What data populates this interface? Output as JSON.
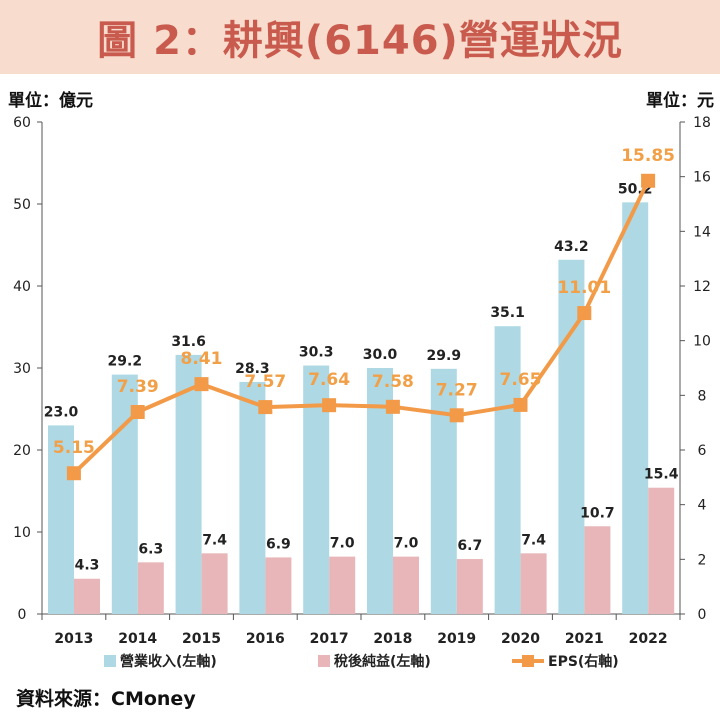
{
  "title": "圖 2：耕興(6146)營運狀況",
  "unit_left": "單位：億元",
  "unit_right": "單位：元",
  "source": "資料來源：CMoney",
  "colors": {
    "revenue": "#add8e4",
    "net_income": "#e8b6b8",
    "eps": "#f29a48",
    "title_bg": "#f8dccd",
    "title_text": "#c85b4d"
  },
  "chart_data": {
    "type": "bar",
    "categories": [
      "2013",
      "2014",
      "2015",
      "2016",
      "2017",
      "2018",
      "2019",
      "2020",
      "2021",
      "2022"
    ],
    "series": [
      {
        "name": "營業收入(左軸)",
        "type": "bar",
        "axis": "left",
        "values": [
          23.0,
          29.2,
          31.6,
          28.3,
          30.3,
          30.0,
          29.9,
          35.1,
          43.2,
          50.2
        ],
        "labels": [
          "23.0",
          "29.2",
          "31.6",
          "28.3",
          "30.3",
          "30.0",
          "29.9",
          "35.1",
          "43.2",
          "50.2"
        ]
      },
      {
        "name": "稅後純益(左軸)",
        "type": "bar",
        "axis": "left",
        "values": [
          4.3,
          6.3,
          7.4,
          6.9,
          7.0,
          7.0,
          6.7,
          7.4,
          10.7,
          15.4
        ],
        "labels": [
          "4.3",
          "6.3",
          "7.4",
          "6.9",
          "7.0",
          "7.0",
          "6.7",
          "7.4",
          "10.7",
          "15.4"
        ]
      },
      {
        "name": "EPS(右軸)",
        "type": "line",
        "axis": "right",
        "values": [
          5.15,
          7.39,
          8.41,
          7.57,
          7.64,
          7.58,
          7.27,
          7.65,
          11.01,
          15.85
        ],
        "labels": [
          "5.15",
          "7.39",
          "8.41",
          "7.57",
          "7.64",
          "7.58",
          "7.27",
          "7.65",
          "11.01",
          "15.85"
        ]
      }
    ],
    "y_left": {
      "min": 0,
      "max": 60,
      "ticks": [
        "0",
        "10",
        "20",
        "30",
        "40",
        "50",
        "60"
      ]
    },
    "y_right": {
      "min": 0,
      "max": 18,
      "ticks": [
        "0",
        "2",
        "4",
        "6",
        "8",
        "10",
        "12",
        "14",
        "16",
        "18"
      ]
    },
    "grid": false,
    "legend_position": "bottom"
  }
}
